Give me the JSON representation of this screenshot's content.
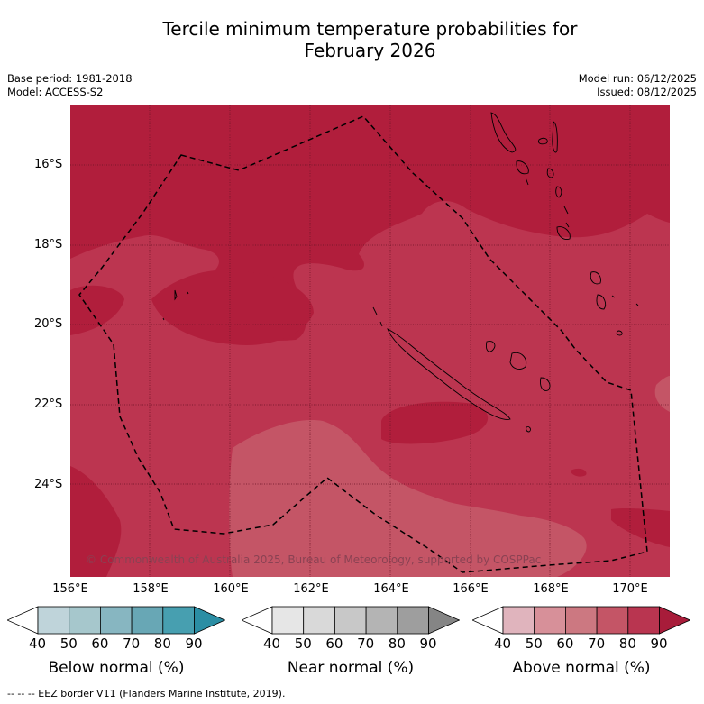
{
  "title_line1": "Tercile minimum temperature probabilities for",
  "title_line2": "February 2026",
  "base_period": "Base period: 1981-2018",
  "model": "Model: ACCESS-S2",
  "model_run": "Model run: 06/12/2025",
  "issued": "Issued: 08/12/2025",
  "copyright": "© Commonwealth of Australia 2025, Bureau of Meteorology, supported by COSPPac",
  "footer": "--  --  -- EEZ border V11 (Flanders Marine Institute, 2019).",
  "lat_labels": [
    "16°S",
    "18°S",
    "20°S",
    "22°S",
    "24°S"
  ],
  "lon_labels": [
    "156°E",
    "158°E",
    "160°E",
    "162°E",
    "164°E",
    "166°E",
    "168°E",
    "170°E"
  ],
  "colorbars": [
    {
      "title": "Below normal (%)",
      "ticks": [
        "40",
        "50",
        "60",
        "70",
        "80",
        "90"
      ],
      "colors": [
        "#ffffff",
        "#bfd4da",
        "#a6c7cc",
        "#87b6c1",
        "#68a7b5",
        "#479fb0",
        "#2b8ea4"
      ]
    },
    {
      "title": "Near normal (%)",
      "ticks": [
        "40",
        "50",
        "60",
        "70",
        "80",
        "90"
      ],
      "colors": [
        "#ffffff",
        "#e6e6e6",
        "#d9d9d9",
        "#c8c8c8",
        "#b4b4b4",
        "#9e9e9e",
        "#858585"
      ]
    },
    {
      "title": "Above normal (%)",
      "ticks": [
        "40",
        "50",
        "60",
        "70",
        "80",
        "90"
      ],
      "colors": [
        "#ffffff",
        "#e0b4bd",
        "#d79099",
        "#cc7881",
        "#c45566",
        "#b93550",
        "#a81c3a"
      ]
    }
  ],
  "map_colors": {
    "above_80": "#b11e3c",
    "above_70": "#bc3550",
    "above_60": "#c45566"
  }
}
